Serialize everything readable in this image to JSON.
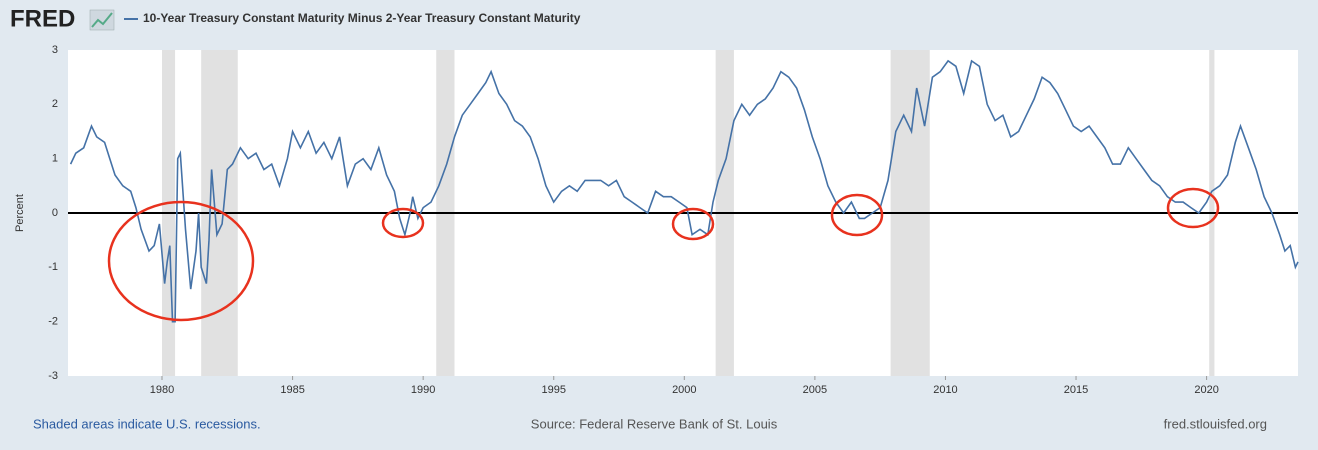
{
  "logo": "FRED",
  "chart_data": {
    "type": "line",
    "y_label": "Percent",
    "xlim": [
      1976.4,
      2023.5
    ],
    "xticks": [
      1980,
      1985,
      1990,
      1995,
      2000,
      2005,
      2010,
      2015,
      2020
    ],
    "ylim": [
      -3,
      3
    ],
    "yticks": [
      -3,
      -2,
      -1,
      0,
      1,
      2,
      3
    ],
    "recession_ranges": [
      [
        1980.0,
        1980.5
      ],
      [
        1981.5,
        1982.9
      ],
      [
        1990.5,
        1991.2
      ],
      [
        2001.2,
        2001.9
      ],
      [
        2007.9,
        2009.4
      ],
      [
        2020.1,
        2020.3
      ]
    ],
    "recession_color": "#e1e1e1",
    "x": [
      1976.5,
      1976.7,
      1977.0,
      1977.3,
      1977.5,
      1977.8,
      1978.0,
      1978.2,
      1978.5,
      1978.8,
      1979.0,
      1979.2,
      1979.5,
      1979.7,
      1979.9,
      1980.1,
      1980.2,
      1980.3,
      1980.4,
      1980.5,
      1980.6,
      1980.7,
      1980.9,
      1981.1,
      1981.3,
      1981.4,
      1981.5,
      1981.7,
      1981.8,
      1981.9,
      1982.1,
      1982.3,
      1982.5,
      1982.7,
      1983.0,
      1983.3,
      1983.6,
      1983.9,
      1984.2,
      1984.5,
      1984.8,
      1985.0,
      1985.3,
      1985.6,
      1985.9,
      1986.2,
      1986.5,
      1986.8,
      1987.1,
      1987.4,
      1987.7,
      1988.0,
      1988.3,
      1988.6,
      1988.9,
      1989.1,
      1989.3,
      1989.5,
      1989.6,
      1989.8,
      1990.0,
      1990.3,
      1990.6,
      1990.9,
      1991.2,
      1991.5,
      1991.8,
      1992.1,
      1992.4,
      1992.6,
      1992.9,
      1993.2,
      1993.5,
      1993.8,
      1994.1,
      1994.4,
      1994.7,
      1995.0,
      1995.3,
      1995.6,
      1995.9,
      1996.2,
      1996.5,
      1996.8,
      1997.1,
      1997.4,
      1997.7,
      1998.0,
      1998.3,
      1998.6,
      1998.9,
      1999.2,
      1999.5,
      1999.8,
      2000.1,
      2000.3,
      2000.6,
      2000.9,
      2001.1,
      2001.3,
      2001.6,
      2001.9,
      2002.2,
      2002.5,
      2002.8,
      2003.1,
      2003.4,
      2003.7,
      2004.0,
      2004.3,
      2004.6,
      2004.9,
      2005.2,
      2005.5,
      2005.8,
      2006.1,
      2006.4,
      2006.7,
      2006.9,
      2007.2,
      2007.5,
      2007.8,
      2008.1,
      2008.4,
      2008.7,
      2008.9,
      2009.2,
      2009.5,
      2009.8,
      2010.1,
      2010.4,
      2010.7,
      2011.0,
      2011.3,
      2011.6,
      2011.9,
      2012.2,
      2012.5,
      2012.8,
      2013.1,
      2013.4,
      2013.7,
      2014.0,
      2014.3,
      2014.6,
      2014.9,
      2015.2,
      2015.5,
      2015.8,
      2016.1,
      2016.4,
      2016.7,
      2017.0,
      2017.3,
      2017.6,
      2017.9,
      2018.2,
      2018.5,
      2018.8,
      2019.1,
      2019.4,
      2019.7,
      2020.0,
      2020.2,
      2020.5,
      2020.8,
      2021.1,
      2021.3,
      2021.6,
      2021.9,
      2022.2,
      2022.5,
      2022.8,
      2023.0,
      2023.2,
      2023.4,
      2023.5
    ],
    "series": [
      {
        "name": "10-Year Treasury Constant Maturity Minus 2-Year Treasury Constant Maturity",
        "color": "#4572a7",
        "values": [
          0.9,
          1.1,
          1.2,
          1.6,
          1.4,
          1.3,
          1.0,
          0.7,
          0.5,
          0.4,
          0.1,
          -0.3,
          -0.7,
          -0.6,
          -0.2,
          -1.3,
          -0.9,
          -0.6,
          -2.0,
          -2.0,
          1.0,
          1.1,
          -0.3,
          -1.4,
          -0.7,
          0.0,
          -1.0,
          -1.3,
          -0.5,
          0.8,
          -0.4,
          -0.2,
          0.8,
          0.9,
          1.2,
          1.0,
          1.1,
          0.8,
          0.9,
          0.5,
          1.0,
          1.5,
          1.2,
          1.5,
          1.1,
          1.3,
          1.0,
          1.4,
          0.5,
          0.9,
          1.0,
          0.8,
          1.2,
          0.7,
          0.4,
          -0.1,
          -0.4,
          0.0,
          0.3,
          -0.1,
          0.1,
          0.2,
          0.5,
          0.9,
          1.4,
          1.8,
          2.0,
          2.2,
          2.4,
          2.6,
          2.2,
          2.0,
          1.7,
          1.6,
          1.4,
          1.0,
          0.5,
          0.2,
          0.4,
          0.5,
          0.4,
          0.6,
          0.6,
          0.6,
          0.5,
          0.6,
          0.3,
          0.2,
          0.1,
          0.0,
          0.4,
          0.3,
          0.3,
          0.2,
          0.1,
          -0.4,
          -0.3,
          -0.4,
          0.2,
          0.6,
          1.0,
          1.7,
          2.0,
          1.8,
          2.0,
          2.1,
          2.3,
          2.6,
          2.5,
          2.3,
          1.9,
          1.4,
          1.0,
          0.5,
          0.2,
          0.0,
          0.2,
          -0.1,
          -0.1,
          0.0,
          0.1,
          0.6,
          1.5,
          1.8,
          1.5,
          2.3,
          1.6,
          2.5,
          2.6,
          2.8,
          2.7,
          2.2,
          2.8,
          2.7,
          2.0,
          1.7,
          1.8,
          1.4,
          1.5,
          1.8,
          2.1,
          2.5,
          2.4,
          2.2,
          1.9,
          1.6,
          1.5,
          1.6,
          1.4,
          1.2,
          0.9,
          0.9,
          1.2,
          1.0,
          0.8,
          0.6,
          0.5,
          0.3,
          0.2,
          0.2,
          0.1,
          0.0,
          0.2,
          0.4,
          0.5,
          0.7,
          1.3,
          1.6,
          1.2,
          0.8,
          0.3,
          0.0,
          -0.4,
          -0.7,
          -0.6,
          -1.0,
          -0.9
        ]
      }
    ]
  },
  "footer": {
    "left": "Shaded areas indicate U.S. recessions.",
    "center": "Source: Federal Reserve Bank of St. Louis",
    "right": "fred.stlouisfed.org"
  }
}
